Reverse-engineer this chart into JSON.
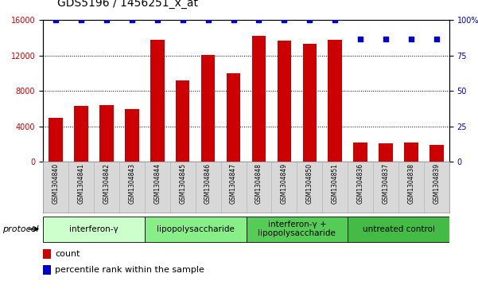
{
  "title": "GDS5196 / 1456251_x_at",
  "samples": [
    "GSM1304840",
    "GSM1304841",
    "GSM1304842",
    "GSM1304843",
    "GSM1304844",
    "GSM1304845",
    "GSM1304846",
    "GSM1304847",
    "GSM1304848",
    "GSM1304849",
    "GSM1304850",
    "GSM1304851",
    "GSM1304836",
    "GSM1304837",
    "GSM1304838",
    "GSM1304839"
  ],
  "counts": [
    5000,
    6300,
    6400,
    6000,
    13800,
    9200,
    12100,
    10000,
    14200,
    13700,
    13300,
    13800,
    2200,
    2100,
    2200,
    1900
  ],
  "percentile_values": [
    100,
    100,
    100,
    100,
    100,
    100,
    100,
    100,
    100,
    100,
    100,
    100,
    87,
    87,
    87,
    87
  ],
  "bar_color": "#cc0000",
  "dot_color": "#0000cc",
  "ylim_left": [
    0,
    16000
  ],
  "ylim_right": [
    0,
    100
  ],
  "yticks_left": [
    0,
    4000,
    8000,
    12000,
    16000
  ],
  "yticks_right": [
    0,
    25,
    50,
    75,
    100
  ],
  "ytick_labels_right": [
    "0",
    "25",
    "50",
    "75",
    "100%"
  ],
  "groups": [
    {
      "label": "interferon-γ",
      "start": 0,
      "end": 4,
      "color": "#ccffcc"
    },
    {
      "label": "lipopolysaccharide",
      "start": 4,
      "end": 8,
      "color": "#88ee88"
    },
    {
      "label": "interferon-γ +\nlipopolysaccharide",
      "start": 8,
      "end": 12,
      "color": "#55cc55"
    },
    {
      "label": "untreated control",
      "start": 12,
      "end": 16,
      "color": "#44bb44"
    }
  ],
  "protocol_label": "protocol",
  "legend_count_label": "count",
  "legend_percentile_label": "percentile rank within the sample",
  "title_fontsize": 10,
  "tick_fontsize": 7,
  "label_fontsize": 8,
  "group_label_fontsize": 7.5,
  "background_color": "#ffffff",
  "plot_bg_color": "#ffffff",
  "xticklabel_bg": "#d8d8d8"
}
